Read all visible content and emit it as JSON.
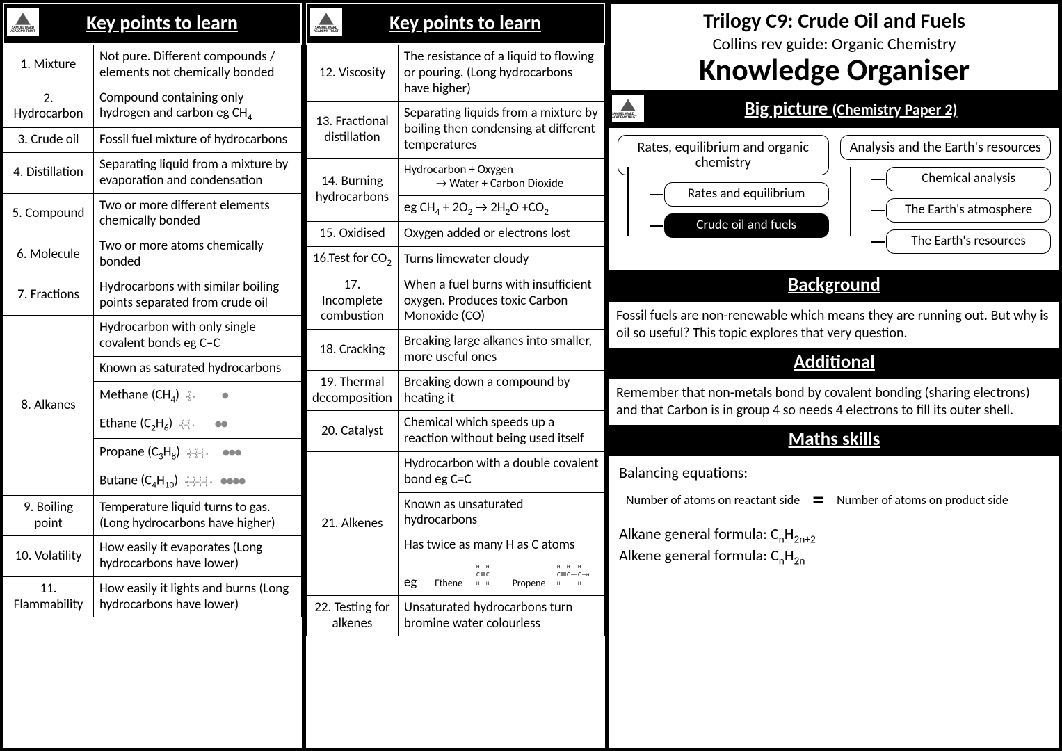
{
  "logo_text": "SAMUEL WARD ACADEMY TRUST",
  "col1": {
    "header": "Key points to learn",
    "rows": [
      {
        "term": "1. Mixture",
        "def": "Not pure. Different compounds / elements not chemically bonded"
      },
      {
        "term": "2. Hydrocarbon",
        "def_html": "Compound containing only hydrogen and carbon eg CH<sub>4</sub>"
      },
      {
        "term": "3. Crude oil",
        "def": "Fossil fuel mixture of hydrocarbons"
      },
      {
        "term": "4. Distillation",
        "def": "Separating liquid from a mixture by evaporation and condensation"
      },
      {
        "term": "5. Compound",
        "def": "Two or more different elements chemically bonded"
      },
      {
        "term": "6. Molecule",
        "def": "Two or more atoms chemically bonded"
      },
      {
        "term": "7. Fractions",
        "def": "Hydrocarbons with similar boiling points separated from crude oil"
      }
    ],
    "alkanes": {
      "term_html": "8. Alk<span class='un'>ane</span>s",
      "defs": [
        "Hydrocarbon with only single covalent bonds eg C–C",
        "Known as saturated hydrocarbons"
      ],
      "examples": [
        {
          "name": "Methane",
          "formula_html": "(CH<sub>4</sub>)",
          "c": 1
        },
        {
          "name": "Ethane",
          "formula_html": "(C<sub>2</sub>H<sub>6</sub>)",
          "c": 2
        },
        {
          "name": "Propane",
          "formula_html": "(C<sub>3</sub>H<sub>8</sub>)",
          "c": 3
        },
        {
          "name": "Butane",
          "formula_html": "(C<sub>4</sub>H<sub>10</sub>)",
          "c": 4
        }
      ]
    },
    "rows2": [
      {
        "term": "9. Boiling point",
        "def": "Temperature liquid turns to gas. (Long hydrocarbons have higher)"
      },
      {
        "term": "10. Volatility",
        "def": "How easily it evaporates (Long hydrocarbons have lower)"
      },
      {
        "term": "11. Flammability",
        "def": "How easily it lights and burns (Long hydrocarbons have lower)"
      }
    ]
  },
  "col2": {
    "header": "Key points to learn",
    "rows": [
      {
        "term": "12. Viscosity",
        "def": "The resistance of a liquid to flowing or pouring. (Long hydrocarbons have higher)"
      },
      {
        "term": "13. Fractional distillation",
        "def": "Separating liquids from a mixture by boiling then condensing at different temperatures"
      }
    ],
    "burning": {
      "term": "14. Burning hydrocarbons",
      "def1_html": "Hydrocarbon + Oxygen<br>&nbsp;&nbsp;&nbsp;&nbsp;&nbsp;&nbsp;&nbsp;&nbsp;&nbsp;&nbsp;&nbsp;&nbsp;→ Water + Carbon Dioxide",
      "def2_html": "eg CH<sub>4</sub> + 2O<sub>2</sub> → 2H<sub>2</sub>O +CO<sub>2</sub>"
    },
    "rows2": [
      {
        "term": "15. Oxidised",
        "def": "Oxygen added or electrons lost"
      },
      {
        "term_html": "16.Test for CO<sub>2</sub>",
        "def": "Turns limewater cloudy"
      },
      {
        "term": "17. Incomplete combustion",
        "def": "When a fuel burns with insufficient oxygen. Produces toxic Carbon Monoxide (CO)"
      },
      {
        "term": "18. Cracking",
        "def": "Breaking large alkanes into smaller, more useful ones"
      },
      {
        "term": "19. Thermal decomposition",
        "def": "Breaking down a compound by heating it"
      },
      {
        "term": "20. Catalyst",
        "def": "Chemical which speeds up a reaction without being used itself"
      }
    ],
    "alkenes": {
      "term_html": "21. Alk<span class='un'>ene</span>s",
      "defs": [
        "Hydrocarbon with a double covalent bond eg C=C",
        "Known as unsaturated hydrocarbons",
        "Has twice as many H as C atoms"
      ],
      "eg_label": "eg",
      "ethene": "Ethene",
      "propene": "Propene"
    },
    "rows3": [
      {
        "term": "22. Testing for alkenes",
        "def": "Unsaturated hydrocarbons turn bromine water colourless"
      }
    ]
  },
  "col3": {
    "title": {
      "line1": "Trilogy C9: Crude Oil and Fuels",
      "line2": "Collins rev guide: Organic Chemistry",
      "line3": "Knowledge Organiser"
    },
    "bigpic": {
      "header": "Big picture",
      "paren": "(Chemistry Paper 2)",
      "left": {
        "top": "Rates, equilibrium and organic chemistry",
        "subs": [
          {
            "text": "Rates and equilibrium",
            "hl": false
          },
          {
            "text": "Crude oil and fuels",
            "hl": true
          }
        ]
      },
      "right": {
        "top": "Analysis and the Earth's resources",
        "subs": [
          {
            "text": "Chemical analysis",
            "hl": false
          },
          {
            "text": "The Earth's atmosphere",
            "hl": false
          },
          {
            "text": "The Earth's resources",
            "hl": false
          }
        ]
      }
    },
    "background": {
      "header": "Background",
      "body": "Fossil fuels are non-renewable which means they are running out. But why is oil so useful? This topic explores that very question."
    },
    "additional": {
      "header": "Additional",
      "body": "Remember that non-metals bond by covalent bonding (sharing electrons) and that Carbon is in group 4 so needs 4 electrons to fill its outer shell."
    },
    "maths": {
      "header": "Maths skills",
      "baleq_title": "Balancing equations:",
      "left": "Number of atoms on reactant side",
      "right": "Number of atoms on product side",
      "alkane_html": "Alkane general formula: C<sub>n</sub>H<sub>2n+2</sub>",
      "alkene_html": "Alkene general formula: C<sub>n</sub>H<sub>2n</sub>"
    }
  },
  "colors": {
    "bg": "#000000",
    "fg": "#000000",
    "panel": "#ffffff"
  }
}
